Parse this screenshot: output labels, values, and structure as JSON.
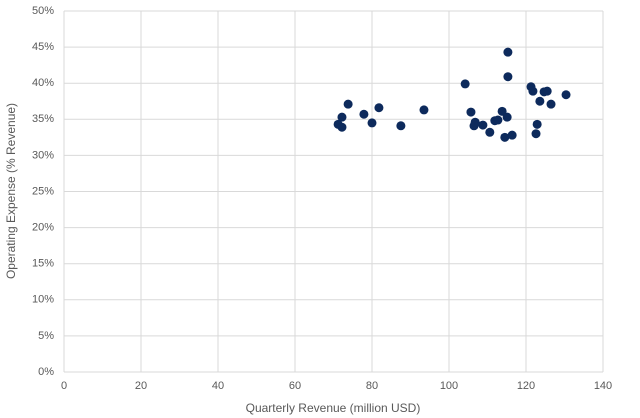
{
  "chart_data": {
    "type": "scatter",
    "x_label": "Quarterly Revenue (million USD)",
    "y_label": "Operating Expense (% Revenue)",
    "color": "#0d2a5c",
    "x": [
      71.2,
      72.2,
      72.2,
      73.8,
      77.9,
      80.0,
      81.8,
      87.5,
      93.5,
      104.2,
      105.7,
      106.5,
      106.8,
      108.8,
      110.6,
      111.9,
      112.7,
      113.8,
      114.5,
      115.1,
      115.3,
      115.3,
      116.4,
      121.3,
      121.8,
      122.6,
      122.9,
      123.6,
      124.7,
      125.5,
      126.5,
      130.4
    ],
    "values": [
      34.3,
      33.9,
      35.3,
      37.1,
      35.7,
      34.5,
      36.6,
      34.1,
      36.3,
      39.9,
      36.0,
      34.1,
      34.6,
      34.2,
      33.2,
      34.8,
      34.9,
      36.1,
      32.5,
      35.3,
      44.3,
      40.9,
      32.8,
      39.5,
      38.9,
      33.0,
      34.3,
      37.5,
      38.8,
      38.9,
      37.1,
      38.4
    ],
    "xlim": [
      0,
      140
    ],
    "xticks": [
      0,
      20,
      40,
      60,
      80,
      100,
      120,
      140
    ],
    "ylim": [
      0,
      50
    ],
    "yticks": [
      {
        "value": 0,
        "label": "0%"
      },
      {
        "value": 5,
        "label": "5%"
      },
      {
        "value": 10,
        "label": "10%"
      },
      {
        "value": 15,
        "label": "15%"
      },
      {
        "value": 20,
        "label": "20%"
      },
      {
        "value": 25,
        "label": "25%"
      },
      {
        "value": 30,
        "label": "30%"
      },
      {
        "value": 35,
        "label": "35%"
      },
      {
        "value": 40,
        "label": "40%"
      },
      {
        "value": 45,
        "label": "45%"
      },
      {
        "value": 50,
        "label": "50%"
      }
    ],
    "grid": true
  }
}
